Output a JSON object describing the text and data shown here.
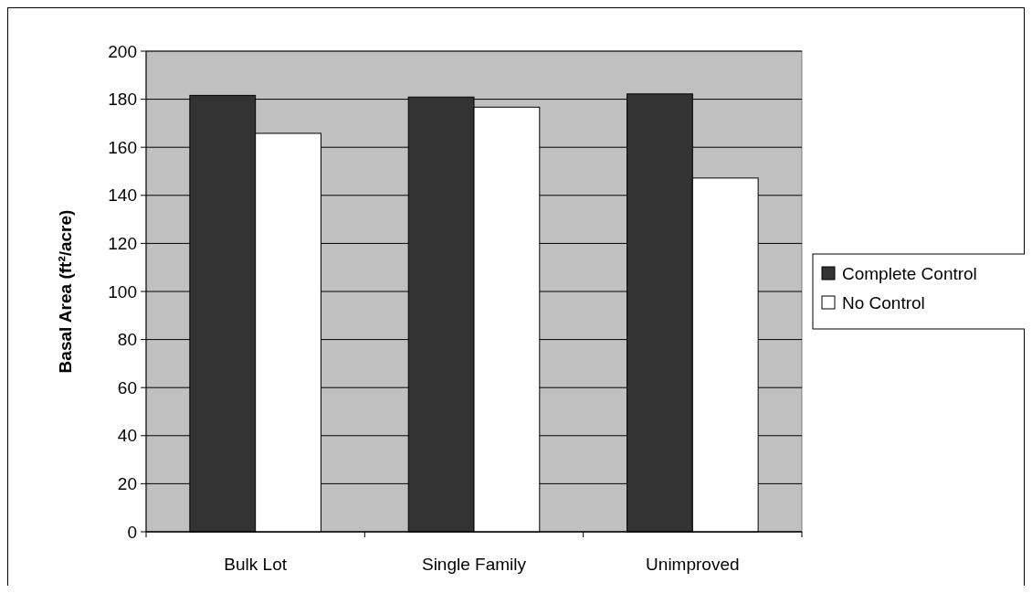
{
  "chart_data": {
    "type": "bar",
    "ylabel": "Basal Area (ft²/acre)",
    "categories": [
      "Bulk Lot",
      "Single Family",
      "Unimproved"
    ],
    "series": [
      {
        "name": "Complete Control",
        "color": "#333333",
        "values": [
          181.6,
          180.9,
          182.2
        ]
      },
      {
        "name": "No Control",
        "color": "#ffffff",
        "values": [
          165.8,
          176.7,
          147.2
        ]
      }
    ],
    "ylim": [
      0,
      200
    ],
    "yticks": [
      0,
      20,
      40,
      60,
      80,
      100,
      120,
      140,
      160,
      180,
      200
    ],
    "grid": "y",
    "legend": "right"
  }
}
